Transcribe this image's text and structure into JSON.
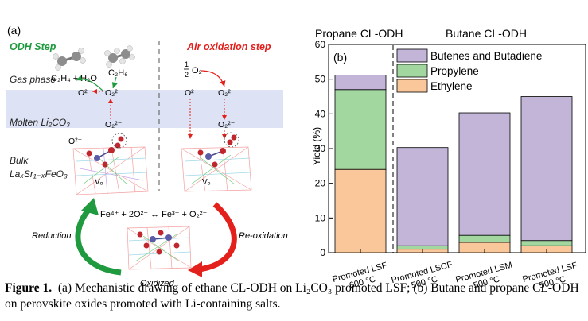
{
  "panel_a": {
    "label": "(a)",
    "odh_step": "ODH Step",
    "air_oxidation_step": "Air oxidation step",
    "gas_phase": "Gas phase",
    "molten_label": "Molten Li₂CO₃",
    "bulk_line1": "Bulk",
    "bulk_line2": "LaₓSr₁₋ₓFeO₃",
    "c2h4_h2o": "C₂H₄ + H₂O",
    "c2h6": "C₂H₆",
    "half_o2_num": "1",
    "half_o2_den": "2",
    "half_o2_species": "O₂",
    "o2minus": "O²⁻",
    "o2minus_2": "O₂²⁻",
    "vo": "Vₒ",
    "equation": "Fe⁴⁺ + 2O²⁻ ↔ Fe³⁺ + O₂²⁻",
    "reduction": "Reduction",
    "reoxidation": "Re-oxidation",
    "oxidized": "Oxidized",
    "colors": {
      "odh_green": "#1f9a3e",
      "air_red": "#e3201b",
      "band": "#dde3f5"
    }
  },
  "chart_data": {
    "type": "bar",
    "stacked": true,
    "panel_label": "(b)",
    "group_titles": [
      "Propane CL-ODH",
      "Butane CL-ODH"
    ],
    "categories": [
      "Promoted LSF\n600 °C",
      "Promoted LSCF\n500 °C",
      "Promoted LSM\n500 °C",
      "Promoted LSF\n500 °C"
    ],
    "series": [
      {
        "name": "Ethylene",
        "values": [
          24,
          1,
          3,
          2
        ],
        "color": "#f9c79a"
      },
      {
        "name": "Propylene",
        "values": [
          23,
          1,
          2,
          1.5
        ],
        "color": "#a2d89f"
      },
      {
        "name": "Butenes and Butadiene",
        "values": [
          4.2,
          28.3,
          35.3,
          41.5
        ],
        "color": "#c2b5d8"
      }
    ],
    "legend_order": [
      "Butenes and Butadiene",
      "Propylene",
      "Ethylene"
    ],
    "ylabel": "Yield (%)",
    "xlabel": "",
    "ylim": [
      0,
      60
    ],
    "yticks": [
      0,
      10,
      20,
      30,
      40,
      50,
      60
    ],
    "grid": false,
    "legend_position": "top-right"
  },
  "caption": {
    "label": "Figure 1.",
    "text": "(a) Mechanistic drawing of ethane CL-ODH on Li₂CO₃ promoted LSF; (b) Butane and propane CL-ODH on perovskite oxides promoted with Li-containing salts."
  }
}
